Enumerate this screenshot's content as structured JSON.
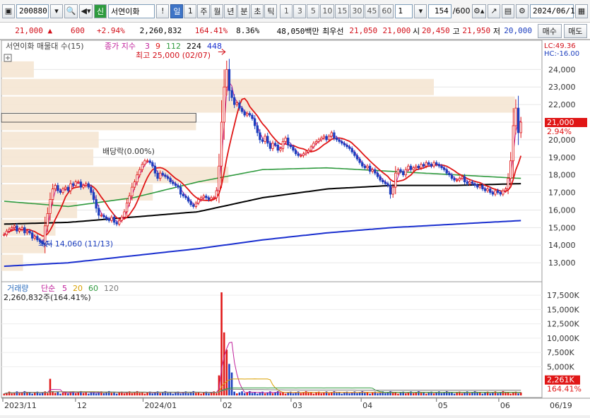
{
  "toolbar": {
    "code": "200880",
    "stock_name": "서연이화",
    "badge": "신",
    "period_buttons": [
      "일",
      "1",
      "주",
      "월",
      "년",
      "분",
      "초",
      "틱"
    ],
    "minute_buttons": [
      "1",
      "3",
      "5",
      "10",
      "15",
      "30",
      "45",
      "60"
    ],
    "count_value": "1",
    "page_counter": "154",
    "page_total": "/600",
    "date": "2024/06/19"
  },
  "quote": {
    "price": "21,000",
    "arrow": "▲",
    "change": "600",
    "change_pct": "+2.94%",
    "volume": "2,260,832",
    "volume_ratio": "164.41%",
    "turnover": "8.36%",
    "amount": "48,050백만",
    "best_label": "최우선",
    "best_ask": "21,050",
    "best_bid": "21,000",
    "open_label": "시",
    "open": "20,450",
    "high_label": "고",
    "high": "21,950",
    "low_label": "저",
    "low": "20,000",
    "buy_label": "매수",
    "sell_label": "매도"
  },
  "price_panel": {
    "title": "서연이화 매물대 수(15)",
    "ma_title": "종가 지수",
    "ma_periods": [
      "3",
      "9",
      "112",
      "224",
      "448"
    ],
    "ma_colors": [
      "#c0209b",
      "#e01616",
      "#2f9a3e",
      "#000000",
      "#1a2fcf"
    ],
    "lc_label": "LC:49.36",
    "hc_label": "HC:-16.00",
    "high_note": "최고 25,000 (02/07)",
    "low_note": "최저 14,060 (11/13)",
    "dividend_note": "배당락(0.00%)",
    "price_tag": "21,000",
    "pct_tag": "2.94%"
  },
  "volume_panel": {
    "title": "거래량",
    "ma_title": "단순",
    "ma_periods": [
      "5",
      "20",
      "60",
      "120"
    ],
    "ma_colors": [
      "#c0209b",
      "#d9a000",
      "#2f9a3e",
      "#7a7a7a"
    ],
    "summary": "2,260,832주(164.41%)",
    "volume_tag": "2,261K",
    "ratio_tag": "164.41%"
  },
  "chart_data": [
    {
      "type": "candlestick",
      "title": "서연이화",
      "ylim": [
        12000,
        25500
      ],
      "y_ticks": [
        13000,
        14000,
        15000,
        16000,
        17000,
        18000,
        19000,
        20000,
        21000,
        22000,
        23000,
        24000
      ],
      "x_labels": [
        "2023/11",
        "12",
        "2024/01",
        "02",
        "03",
        "04",
        "05",
        "06",
        "06/19"
      ],
      "close": [
        14600,
        14800,
        14900,
        15000,
        15100,
        14800,
        14900,
        15000,
        14700,
        14800,
        14700,
        14400,
        14500,
        14300,
        14200,
        14060,
        15100,
        15800,
        16600,
        17200,
        17400,
        17100,
        17000,
        17200,
        17300,
        17100,
        17500,
        17400,
        17600,
        17600,
        17300,
        17400,
        17500,
        17300,
        17000,
        16600,
        16100,
        15700,
        15700,
        15600,
        15500,
        15400,
        15600,
        15300,
        15200,
        15400,
        15600,
        15900,
        16400,
        16800,
        17300,
        17600,
        18000,
        18300,
        18600,
        18800,
        18800,
        18700,
        18500,
        18100,
        17800,
        18100,
        18000,
        17900,
        17800,
        17600,
        17500,
        17400,
        17300,
        16900,
        16800,
        16700,
        16500,
        16300,
        16200,
        16400,
        16600,
        16700,
        16800,
        16700,
        16600,
        16700,
        16700,
        17100,
        18500,
        21000,
        23000,
        24000,
        22800,
        22400,
        22000,
        22100,
        21800,
        21600,
        21400,
        21500,
        21400,
        21200,
        20800,
        20400,
        20000,
        19900,
        20200,
        19800,
        19500,
        19800,
        19700,
        19400,
        19500,
        19900,
        20100,
        19700,
        19600,
        19400,
        19200,
        19100,
        19100,
        19200,
        19300,
        19400,
        19600,
        19800,
        19900,
        20000,
        20100,
        20200,
        20000,
        20200,
        20400,
        20100,
        20000,
        19900,
        19800,
        19700,
        19600,
        19500,
        19300,
        19100,
        18900,
        18700,
        18500,
        18400,
        18500,
        18200,
        18300,
        18100,
        17900,
        17700,
        17600,
        17500,
        17400,
        16900,
        17300,
        18100,
        18300,
        18200,
        18000,
        18300,
        18500,
        18300,
        18400,
        18500,
        18400,
        18600,
        18500,
        18700,
        18600,
        18500,
        18700,
        18600,
        18500,
        18400,
        18300,
        18100,
        18000,
        17800,
        17700,
        17700,
        17800,
        17900,
        17600,
        17500,
        17600,
        17500,
        17400,
        17300,
        17400,
        17200,
        17100,
        17200,
        17000,
        16900,
        17100,
        17000,
        16900,
        17100,
        17200,
        17800,
        18800,
        20800,
        21800,
        20400,
        21000
      ],
      "ma_3": "series computed from close",
      "ma_9": "series computed from close",
      "ma_112": [
        16500,
        16200,
        16700,
        17600,
        18300,
        18400,
        18200,
        18000,
        17800
      ],
      "ma_224": [
        15200,
        15300,
        15600,
        15900,
        16700,
        17200,
        17400,
        17400,
        17500
      ],
      "ma_448": [
        12800,
        13000,
        13400,
        13800,
        14300,
        14700,
        15000,
        15200,
        15400
      ]
    },
    {
      "type": "bar",
      "title": "거래량",
      "ylim": [
        0,
        18500
      ],
      "y_ticks": [
        5000,
        7500,
        10000,
        12500,
        15000,
        17500
      ],
      "y_tick_labels": [
        "5,000K",
        "7,500K",
        "10,000K",
        "12,500K",
        "15,000K",
        "17,500K"
      ],
      "spikes_k": [
        {
          "day": 18,
          "v": 2900
        },
        {
          "day": 84,
          "v": 3500
        },
        {
          "day": 85,
          "v": 18000
        },
        {
          "day": 86,
          "v": 11000
        },
        {
          "day": 87,
          "v": 8000
        },
        {
          "day": 88,
          "v": 5500
        },
        {
          "day": 89,
          "v": 4000
        },
        {
          "day": 203,
          "v": 6000
        },
        {
          "day": 204,
          "v": 2261
        }
      ]
    }
  ]
}
